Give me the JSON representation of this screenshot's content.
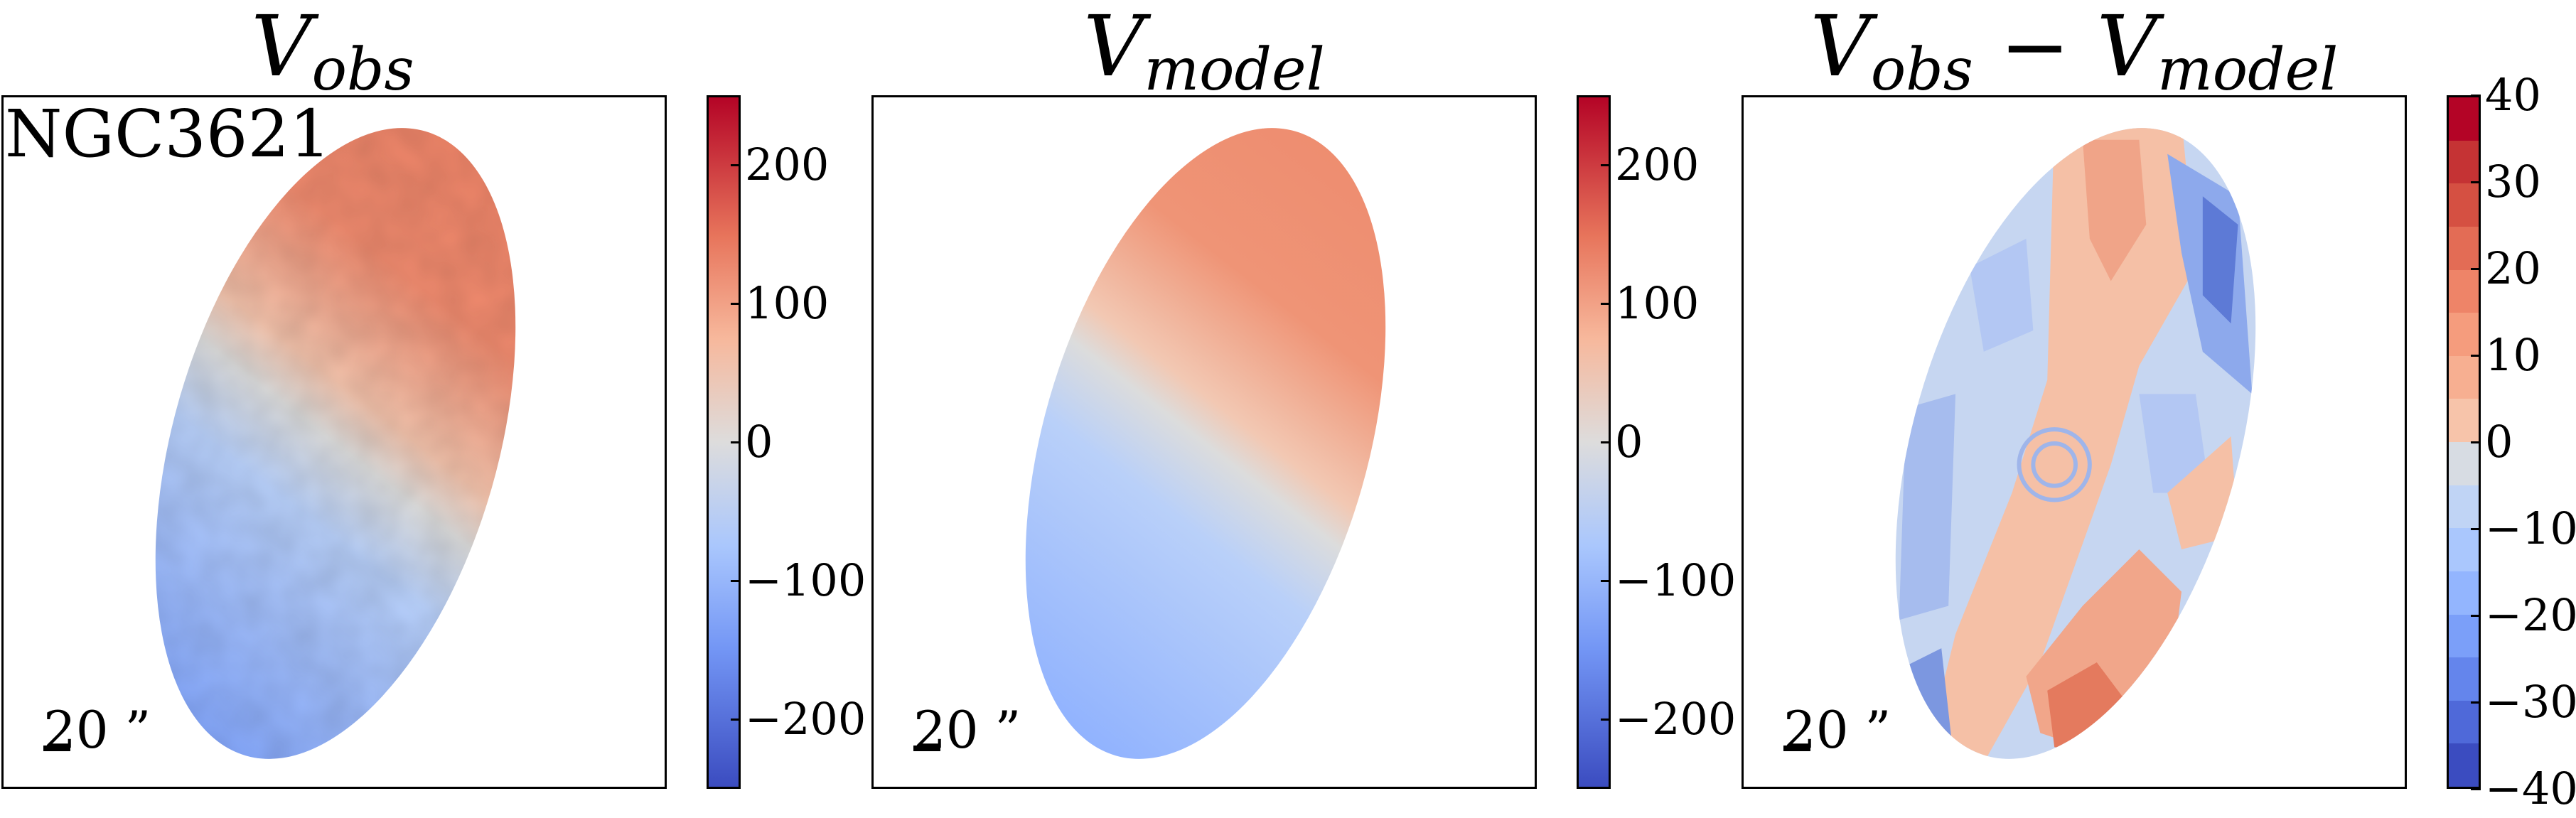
{
  "panels": [
    {
      "title_main": "V",
      "title_sub": "obs",
      "galaxy": "NGC3621",
      "scale": "20 ”"
    },
    {
      "title_main": "V",
      "title_sub": "model",
      "galaxy": "",
      "scale": "20 ”"
    },
    {
      "title_main": "V",
      "title_sub": "obs",
      "title_mid": " − V",
      "title_sub2": "model",
      "galaxy": "",
      "scale": "20 ”"
    }
  ],
  "chart_data": [
    {
      "type": "heatmap",
      "title": "V_obs",
      "annotation": "NGC3621",
      "scale_bar": "20 ”",
      "colormap": "coolwarm",
      "colorbar": {
        "range": [
          -250,
          250
        ],
        "ticks": [
          200,
          100,
          0,
          -100,
          -200
        ],
        "tick_labels": [
          "200",
          "100",
          "0",
          "−100",
          "−200"
        ]
      },
      "value_range_shown": [
        -110,
        120
      ]
    },
    {
      "type": "heatmap",
      "title": "V_model",
      "scale_bar": "20 ”",
      "colormap": "coolwarm",
      "colorbar": {
        "range": [
          -250,
          250
        ],
        "ticks": [
          200,
          100,
          0,
          -100,
          -200
        ],
        "tick_labels": [
          "200",
          "100",
          "0",
          "−100",
          "−200"
        ]
      },
      "value_range_shown": [
        -100,
        110
      ]
    },
    {
      "type": "heatmap",
      "title": "V_obs − V_model",
      "scale_bar": "20 ”",
      "colormap": "coolwarm (discrete, 16 levels)",
      "colorbar": {
        "range": [
          -40,
          40
        ],
        "ticks": [
          40,
          30,
          20,
          10,
          0,
          -10,
          -20,
          -30,
          -40
        ],
        "tick_labels": [
          "40",
          "30",
          "20",
          "10",
          "0",
          "−10",
          "−20",
          "−30",
          "−40"
        ],
        "levels": [
          "#b40426",
          "#c53334",
          "#d55042",
          "#e36c55",
          "#ee8468",
          "#f59c7d",
          "#f7af91",
          "#f7c4aa",
          "#d7dce3",
          "#c0d4f5",
          "#aac7fd",
          "#93b5fe",
          "#7b9ff9",
          "#6485ec",
          "#4f69d9",
          "#3b4cc0"
        ]
      }
    }
  ],
  "colors": {
    "red": "#b40426",
    "salmon": "#ee8468",
    "neutral": "#dddcdc",
    "lightblue": "#aac7fd",
    "blue": "#3b4cc0"
  }
}
